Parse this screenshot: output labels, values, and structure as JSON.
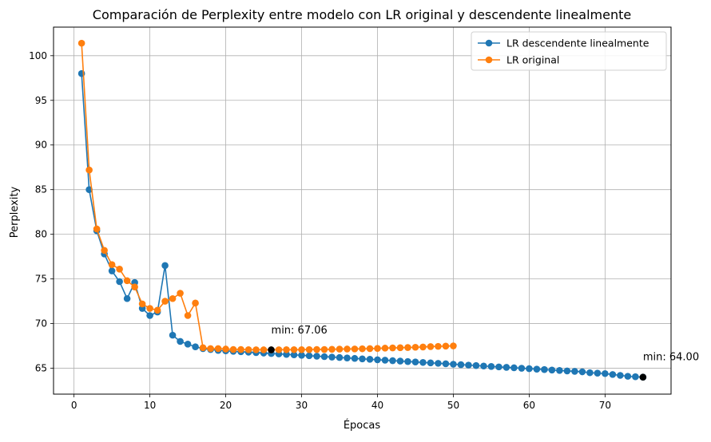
{
  "chart_data": {
    "type": "line",
    "title": "Comparación de Perplexity entre modelo con LR original y descendente linealmente",
    "xlabel": "Épocas",
    "ylabel": "Perplexity",
    "xlim": [
      -2.7,
      78.7
    ],
    "ylim": [
      62.1,
      103.2
    ],
    "xticks": [
      0,
      10,
      20,
      30,
      40,
      50,
      60,
      70
    ],
    "yticks": [
      65,
      70,
      75,
      80,
      85,
      90,
      95,
      100
    ],
    "grid": true,
    "legend_position": "top-right",
    "series": [
      {
        "name": "LR descendente linealmente",
        "color": "#1f77b4",
        "x": [
          1,
          2,
          3,
          4,
          5,
          6,
          7,
          8,
          9,
          10,
          11,
          12,
          13,
          14,
          15,
          16,
          17,
          18,
          19,
          20,
          21,
          22,
          23,
          24,
          25,
          26,
          27,
          28,
          29,
          30,
          31,
          32,
          33,
          34,
          35,
          36,
          37,
          38,
          39,
          40,
          41,
          42,
          43,
          44,
          45,
          46,
          47,
          48,
          49,
          50,
          51,
          52,
          53,
          54,
          55,
          56,
          57,
          58,
          59,
          60,
          61,
          62,
          63,
          64,
          65,
          66,
          67,
          68,
          69,
          70,
          71,
          72,
          73,
          74,
          75
        ],
        "y": [
          98.0,
          85.0,
          80.4,
          77.8,
          75.9,
          74.7,
          72.8,
          74.6,
          71.7,
          70.9,
          71.3,
          76.5,
          68.7,
          68.0,
          67.7,
          67.4,
          67.2,
          67.1,
          67.0,
          66.95,
          66.9,
          66.85,
          66.8,
          66.75,
          66.7,
          66.65,
          66.6,
          66.55,
          66.5,
          66.45,
          66.4,
          66.35,
          66.3,
          66.25,
          66.2,
          66.15,
          66.1,
          66.05,
          66.0,
          65.95,
          65.9,
          65.85,
          65.8,
          65.75,
          65.7,
          65.65,
          65.6,
          65.55,
          65.5,
          65.45,
          65.4,
          65.35,
          65.3,
          65.25,
          65.2,
          65.15,
          65.1,
          65.05,
          65.0,
          64.95,
          64.9,
          64.85,
          64.8,
          64.75,
          64.7,
          64.65,
          64.6,
          64.5,
          64.45,
          64.4,
          64.3,
          64.2,
          64.1,
          64.05,
          64.0
        ]
      },
      {
        "name": "LR original",
        "color": "#ff7f0e",
        "x": [
          1,
          2,
          3,
          4,
          5,
          6,
          7,
          8,
          9,
          10,
          11,
          12,
          13,
          14,
          15,
          16,
          17,
          18,
          19,
          20,
          21,
          22,
          23,
          24,
          25,
          26,
          27,
          28,
          29,
          30,
          31,
          32,
          33,
          34,
          35,
          36,
          37,
          38,
          39,
          40,
          41,
          42,
          43,
          44,
          45,
          46,
          47,
          48,
          49,
          50
        ],
        "y": [
          101.4,
          87.2,
          80.6,
          78.2,
          76.6,
          76.1,
          74.8,
          74.1,
          72.2,
          71.7,
          71.5,
          72.5,
          72.8,
          73.4,
          70.9,
          72.3,
          67.3,
          67.2,
          67.2,
          67.15,
          67.1,
          67.1,
          67.08,
          67.07,
          67.06,
          67.06,
          67.07,
          67.08,
          67.08,
          67.08,
          67.09,
          67.1,
          67.1,
          67.12,
          67.14,
          67.15,
          67.16,
          67.18,
          67.2,
          67.22,
          67.25,
          67.28,
          67.3,
          67.32,
          67.35,
          67.38,
          67.42,
          67.45,
          67.48,
          67.5
        ]
      }
    ],
    "annotations": [
      {
        "text": "min: 67.06",
        "x": 26,
        "y": 67.06,
        "label_x": 26,
        "label_y": 68.9
      },
      {
        "text": "min: 64.00",
        "x": 75,
        "y": 64.0,
        "label_x": 75,
        "label_y": 65.9
      }
    ],
    "annotation_marker_color": "#000000",
    "grid_color": "#b0b0b0"
  }
}
